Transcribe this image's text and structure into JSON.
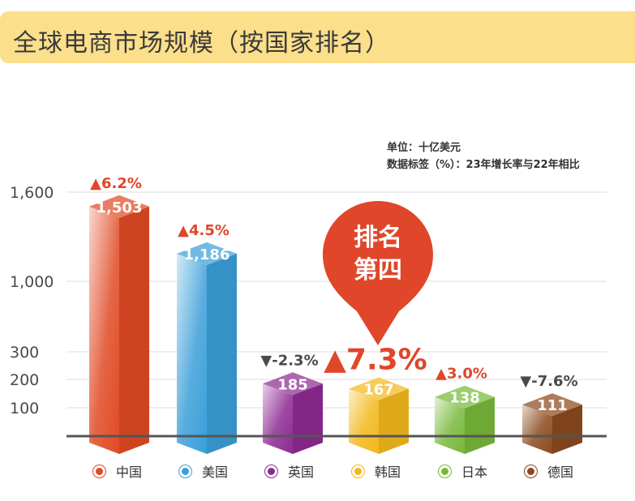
{
  "header": {
    "title": "全球电商市场规模（按国家排名）"
  },
  "notes": {
    "unit": "单位：十亿美元",
    "label_note": "数据标签（%）：23年增长率与22年相比"
  },
  "callout": {
    "line1": "排名",
    "line2": "第四"
  },
  "chart_data": {
    "type": "bar",
    "title": "全球电商市场规模（按国家排名）",
    "ylabel": "",
    "xlabel": "",
    "yticks": [
      "1,600",
      "1,000",
      "300",
      "200",
      "100"
    ],
    "categories": [
      "中国",
      "美国",
      "英国",
      "韩国",
      "日本",
      "德国"
    ],
    "values": [
      1503,
      1186,
      185,
      167,
      138,
      111
    ],
    "value_labels": [
      "1,503",
      "1,186",
      "185",
      "167",
      "138",
      "111"
    ],
    "growth_labels": [
      "▲6.2%",
      "▲4.5%",
      "▼-2.3%",
      "▲7.3%",
      "▲3.0%",
      "▼-7.6%"
    ],
    "growth_colors": [
      "#e0462a",
      "#e0462a",
      "#4a4a4a",
      "#e0462a",
      "#e0462a",
      "#4a4a4a"
    ],
    "colors": [
      "#e04a24",
      "#3a9fd8",
      "#8d2a92",
      "#f2b81c",
      "#78b83a",
      "#8a4a1e"
    ],
    "legend_placement": "bottom",
    "grid": true,
    "highlight_category": "韩国"
  }
}
